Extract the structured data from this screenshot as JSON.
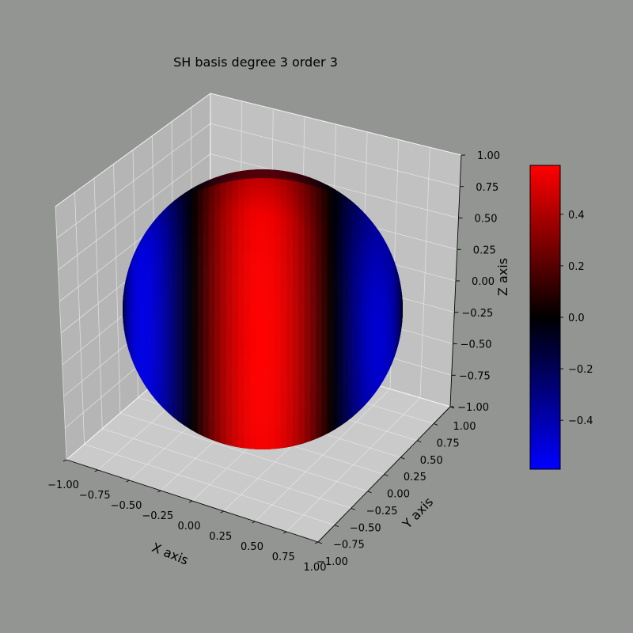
{
  "chart_data": {
    "type": "surface3d",
    "title": "SH basis degree 3 order 3",
    "xlabel": "X axis",
    "ylabel": "Y axis",
    "zlabel": "Z axis",
    "xlim": [
      -1.0,
      1.0
    ],
    "ylim": [
      -1.0,
      1.0
    ],
    "zlim": [
      -1.0,
      1.0
    ],
    "x_ticks": [
      "−1.00",
      "−0.75",
      "−0.50",
      "−0.25",
      "0.00",
      "0.25",
      "0.50",
      "0.75",
      "1.00"
    ],
    "y_ticks": [
      "−1.00",
      "−0.75",
      "−0.50",
      "−0.25",
      "0.00",
      "0.25",
      "0.50",
      "0.75",
      "1.00"
    ],
    "z_ticks": [
      "−1.00",
      "−0.75",
      "−0.50",
      "−0.25",
      "0.00",
      "0.25",
      "0.50",
      "0.75",
      "1.00"
    ],
    "surface": "unit sphere colored by real spherical harmonic, degree 3, order 3",
    "grid": true,
    "colorbar": {
      "min": -0.59,
      "max": 0.59,
      "ticks": [
        0.4,
        0.2,
        0.0,
        -0.2,
        -0.4
      ],
      "tick_labels": [
        "0.4",
        "0.2",
        "0.0",
        "−0.2",
        "−0.4"
      ],
      "colormap": [
        "#0000ff",
        "#000000",
        "#ff0000"
      ]
    },
    "colors": {
      "background": "#939593",
      "pane_back": "#c1c1c1",
      "pane_side": "#b5b5b5",
      "pane_floor": "#cacaca",
      "positive": "#ff0000",
      "negative": "#0000ff"
    }
  }
}
